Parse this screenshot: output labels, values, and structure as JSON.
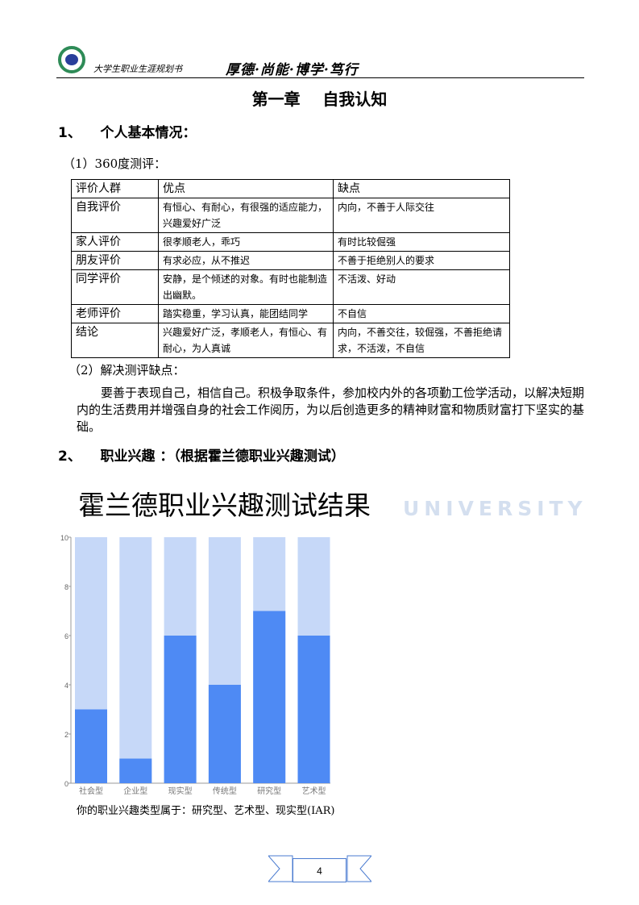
{
  "header": {
    "subtitle": "大学生职业生涯规划书",
    "motto": "厚德·尚能·博学·笃行"
  },
  "chapter_title": "第一章    自我认知",
  "section1": {
    "heading": "1、    个人基本情况：",
    "sub1": "（1）360度测评：",
    "table": {
      "headers": [
        "评价人群",
        "优点",
        "缺点"
      ],
      "rows": [
        [
          "自我评价",
          "有恒心、有耐心，有很强的适应能力，兴趣爱好广泛",
          "内向，不善于人际交往"
        ],
        [
          "家人评价",
          "很孝顺老人，乖巧",
          "有时比较倔强"
        ],
        [
          "朋友评价",
          "有求必应，从不推迟",
          "不善于拒绝别人的要求"
        ],
        [
          "同学评价",
          "安静，是个倾述的对象。有时也能制造出幽默。",
          "不活泼、好动"
        ],
        [
          "老师评价",
          "踏实稳重，学习认真，能团结同学",
          "不自信"
        ],
        [
          "结论",
          "兴趣爱好广泛，孝顺老人，有恒心、有耐心，为人真诚",
          "内向，不善交往，较倔强，不善拒绝请求，不活泼，不自信"
        ]
      ]
    },
    "sub2": "（2）解决测评缺点：",
    "paragraph": "要善于表现自己，相信自己。积极争取条件，参加校内外的各项勤工俭学活动，以解决短期内的生活费用并增强自身的社会工作阅历，为以后创造更多的精神财富和物质财富打下坚实的基础。"
  },
  "section2": {
    "heading": "2、    职业兴趣 ：（根据霍兰德职业兴趣测试）"
  },
  "watermark": {
    "text": "UNIVERSITY"
  },
  "chart_title": "霍兰德职业兴趣测试结果",
  "chart_data": {
    "type": "bar",
    "stacked_background_max": 10,
    "categories": [
      "社会型",
      "企业型",
      "现实型",
      "传统型",
      "研究型",
      "艺术型"
    ],
    "values": [
      3,
      1,
      6,
      4,
      7,
      6
    ],
    "ylim": [
      0,
      10
    ],
    "yticks": [
      0,
      2,
      4,
      6,
      8,
      10
    ],
    "colors": {
      "bar": "#4e8af4",
      "background": "#c6d8f8"
    }
  },
  "caption": "你的职业兴趣类型属于：研究型、艺术型、现实型(IAR)",
  "footer": {
    "page_number": "4"
  }
}
